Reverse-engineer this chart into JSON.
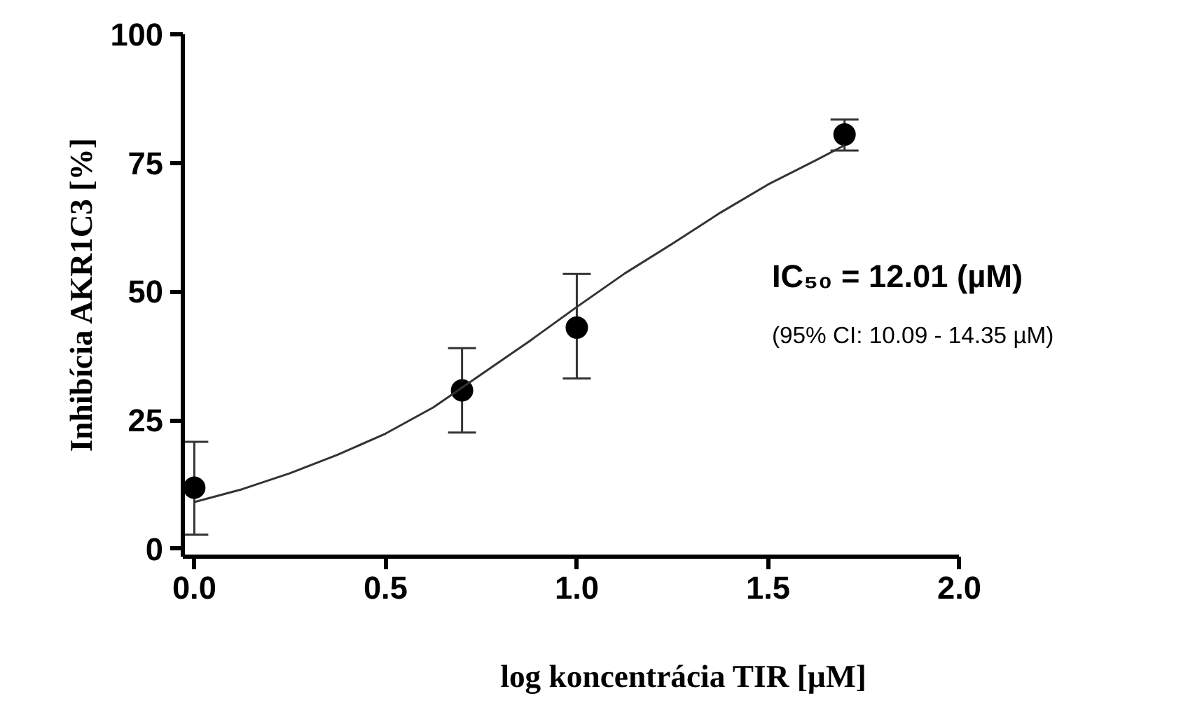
{
  "chart_data": {
    "type": "scatter",
    "xlabel": "log koncentrácia TIR [µM]",
    "ylabel": "Inhibícia AKR1C3 [%]",
    "x": [
      0,
      0.7,
      1.0,
      1.7
    ],
    "series": [
      {
        "color": "#000000",
        "values": [
          11.9,
          30.8,
          43.0,
          80.5
        ],
        "errors": [
          [
            2.8,
            20.8
          ],
          [
            22.6,
            39.0
          ],
          [
            33.1,
            53.4
          ],
          [
            77.4,
            83.4
          ]
        ]
      },
      {
        "type": "line",
        "color": "#333333",
        "x": [
          0,
          0.125,
          0.25,
          0.375,
          0.5,
          0.625,
          0.75,
          0.875,
          1.0,
          1.125,
          1.25,
          1.375,
          1.5,
          1.625,
          1.7
        ],
        "values": [
          9.1,
          11.6,
          14.7,
          18.3,
          22.4,
          27.5,
          33.9,
          40.3,
          47.0,
          53.5,
          59.3,
          65.3,
          70.8,
          75.5,
          78.4
        ]
      }
    ],
    "xlim": [
      -0.03,
      2
    ],
    "ylim": [
      -1.5,
      100
    ],
    "xticks": [
      {
        "value": 0,
        "label": "0.0"
      },
      {
        "value": 0.5,
        "label": "0.5"
      },
      {
        "value": 1,
        "label": "1.0"
      },
      {
        "value": 1.5,
        "label": "1.5"
      },
      {
        "value": 2,
        "label": "2.0"
      }
    ],
    "yticks": [
      0,
      25,
      50,
      75,
      100
    ],
    "annotations": [
      "IC₅₀ = 12.01 (µM)",
      "(95% CI: 10.09 - 14.35 µM)"
    ],
    "grid": false,
    "line_style": "solid"
  }
}
